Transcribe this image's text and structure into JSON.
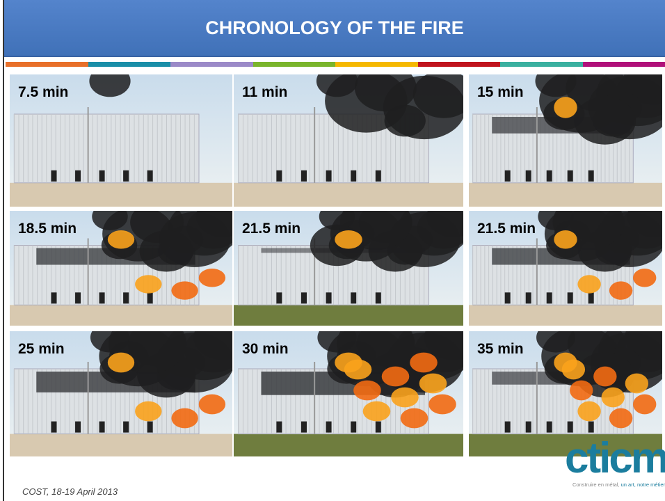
{
  "header": {
    "title": "CHRONOLOGY OF THE FIRE"
  },
  "photos": [
    {
      "label": "7.5 min"
    },
    {
      "label": "11 min"
    },
    {
      "label": "15 min"
    },
    {
      "label": "18.5 min"
    },
    {
      "label": "21.5 min"
    },
    {
      "label": "21.5 min"
    },
    {
      "label": "25 min"
    },
    {
      "label": "30 min"
    },
    {
      "label": "35 min"
    }
  ],
  "footer": {
    "text": "COST, 18-19 April 2013"
  },
  "logo": {
    "name": "cticm",
    "tagline": "Construire en métal, ",
    "tagline_accent": "un art, notre métier"
  }
}
